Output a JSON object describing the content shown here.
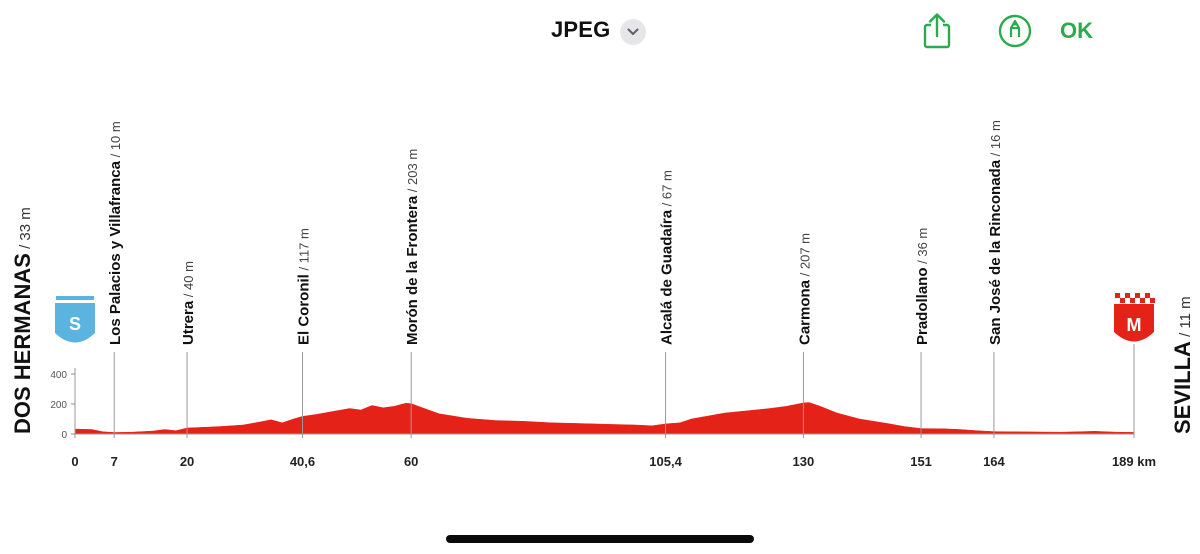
{
  "toolbar": {
    "format": "JPEG",
    "format_menu_icon": "chevron-down-icon",
    "share_icon": "share-icon",
    "markup_icon": "markup-pen-icon",
    "ok_label": "OK",
    "accent_color": "#2bab4d"
  },
  "chart_data": {
    "type": "area",
    "x_unit": "km",
    "y_unit": "m",
    "xlim": [
      0,
      189
    ],
    "ylim": [
      0,
      400
    ],
    "y_ticks": [
      "400",
      "200",
      "0"
    ],
    "fill_color": "#e52218",
    "start": {
      "name": "DOS HERMANAS",
      "altitude": "/ 33 m",
      "badge": "S",
      "badge_color": "#5bb3df"
    },
    "finish": {
      "name": "SEVILLA",
      "altitude": "/ 11 m",
      "badge": "M",
      "badge_color": "#e52218"
    },
    "waypoints": [
      {
        "km": 7,
        "km_label": "7",
        "name": "Los Palacios y Villafranca",
        "altitude": "/ 10 m"
      },
      {
        "km": 20,
        "km_label": "20",
        "name": "Utrera",
        "altitude": "/ 40 m"
      },
      {
        "km": 40.6,
        "km_label": "40,6",
        "name": "El Coronil",
        "altitude": "/ 117 m"
      },
      {
        "km": 60,
        "km_label": "60",
        "name": "Morón de la Frontera",
        "altitude": "/ 203 m"
      },
      {
        "km": 105.4,
        "km_label": "105,4",
        "name": "Alcalá de Guadaíra",
        "altitude": "/ 67 m"
      },
      {
        "km": 130,
        "km_label": "130",
        "name": "Carmona",
        "altitude": "/ 207 m"
      },
      {
        "km": 151,
        "km_label": "151",
        "name": "Pradollano",
        "altitude": "/ 36 m"
      },
      {
        "km": 164,
        "km_label": "164",
        "name": "San José de la Rinconada",
        "altitude": "/ 16 m"
      }
    ],
    "x_tick_start": "0",
    "x_tick_end": "189 km",
    "profile": [
      [
        0,
        33
      ],
      [
        3,
        30
      ],
      [
        5,
        15
      ],
      [
        7,
        10
      ],
      [
        10,
        12
      ],
      [
        14,
        20
      ],
      [
        16,
        30
      ],
      [
        18,
        22
      ],
      [
        20,
        40
      ],
      [
        23,
        45
      ],
      [
        26,
        50
      ],
      [
        30,
        60
      ],
      [
        33,
        80
      ],
      [
        35,
        95
      ],
      [
        37,
        75
      ],
      [
        39,
        100
      ],
      [
        40.6,
        117
      ],
      [
        43,
        130
      ],
      [
        46,
        150
      ],
      [
        49,
        170
      ],
      [
        51,
        160
      ],
      [
        53,
        190
      ],
      [
        55,
        175
      ],
      [
        57,
        185
      ],
      [
        59,
        205
      ],
      [
        60,
        203
      ],
      [
        62,
        175
      ],
      [
        65,
        135
      ],
      [
        70,
        105
      ],
      [
        75,
        90
      ],
      [
        80,
        85
      ],
      [
        85,
        75
      ],
      [
        90,
        70
      ],
      [
        95,
        65
      ],
      [
        100,
        60
      ],
      [
        103,
        55
      ],
      [
        105.4,
        67
      ],
      [
        108,
        75
      ],
      [
        110,
        100
      ],
      [
        113,
        120
      ],
      [
        116,
        140
      ],
      [
        120,
        155
      ],
      [
        124,
        170
      ],
      [
        127,
        185
      ],
      [
        130,
        207
      ],
      [
        131,
        210
      ],
      [
        133,
        185
      ],
      [
        136,
        140
      ],
      [
        140,
        100
      ],
      [
        145,
        70
      ],
      [
        148,
        50
      ],
      [
        151,
        36
      ],
      [
        155,
        35
      ],
      [
        158,
        30
      ],
      [
        161,
        22
      ],
      [
        164,
        16
      ],
      [
        170,
        14
      ],
      [
        176,
        12
      ],
      [
        182,
        18
      ],
      [
        186,
        12
      ],
      [
        189,
        11
      ]
    ]
  }
}
